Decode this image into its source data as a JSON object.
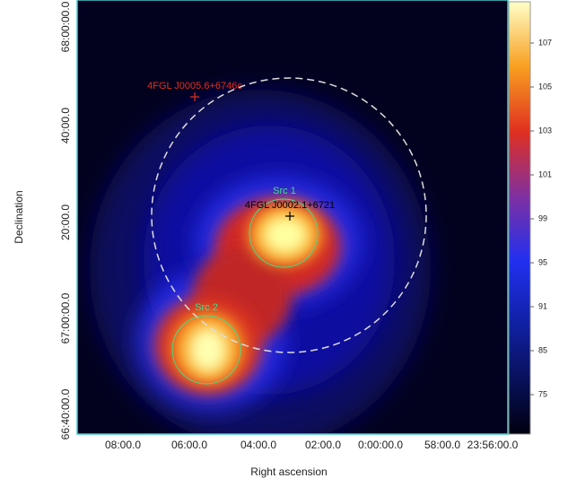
{
  "chart_data": {
    "type": "skymap",
    "xlabel": "Right ascension",
    "ylabel": "Declination",
    "xtick_labels": [
      "08:00.0",
      "06:00.0",
      "04:00.0",
      "02:00.0",
      "0:00:00.0",
      "58:00.0",
      "23:56:00.0"
    ],
    "ytick_labels": [
      "68:00:00.0",
      "40:00.0",
      "20:00.0",
      "67:00:00.0",
      "66:40:00.0"
    ],
    "colorbar_ticks": [
      75,
      85,
      91,
      95,
      99,
      101,
      103,
      105,
      107
    ],
    "annotations": [
      {
        "text": "4FGL J0005.6+6746c",
        "color": "#e0301e"
      },
      {
        "text": "4FGL J0002.1+6721",
        "color": "#000000"
      },
      {
        "text": "Src 1",
        "color": "#3fe08a"
      },
      {
        "text": "Src 2",
        "color": "#3fe08a"
      }
    ]
  }
}
